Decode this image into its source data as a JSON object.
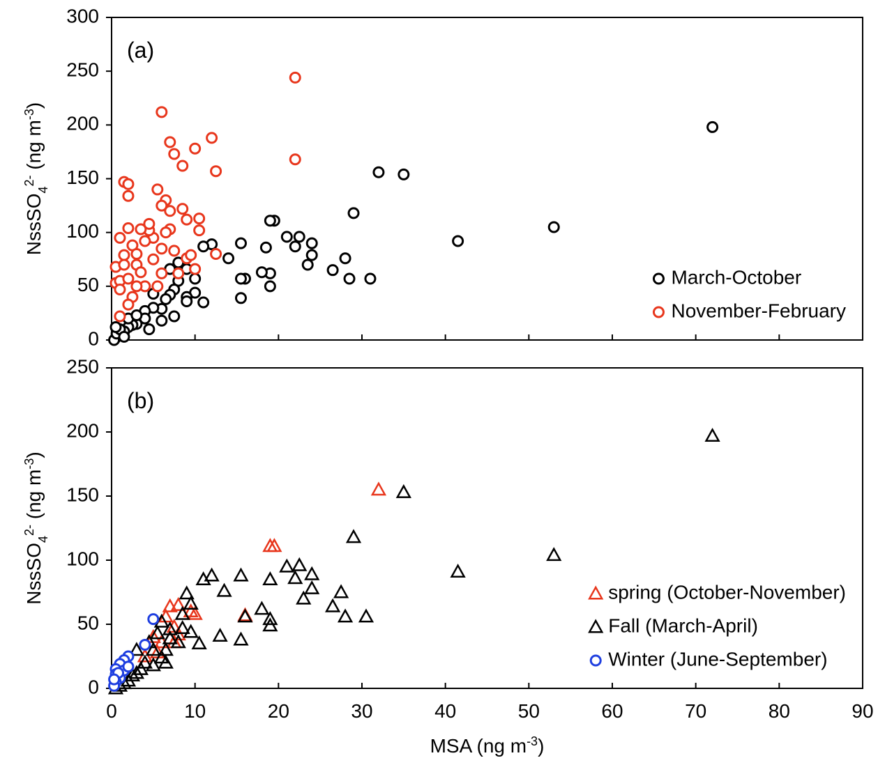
{
  "chart_data": [
    {
      "type": "scatter",
      "annotation": "(a)",
      "ylabel": [
        "NssSO",
        "4",
        "2-",
        " (ng m",
        "-3",
        ")"
      ],
      "xlim": [
        0,
        90
      ],
      "xticks": [
        0,
        10,
        20,
        30,
        40,
        50,
        60,
        70,
        80,
        90
      ],
      "show_xtick_labels": false,
      "ylim": [
        0,
        300
      ],
      "yticks": [
        0,
        50,
        100,
        150,
        200,
        250,
        300
      ],
      "legend": "lower right",
      "series": [
        {
          "name": "March-October",
          "color": "#000000",
          "marker": "circle",
          "x": [
            72,
            53,
            41.5,
            35,
            32,
            31,
            29,
            28.5,
            28,
            26.5,
            24,
            24,
            23.5,
            22.5,
            22,
            21,
            19.5,
            19,
            19,
            19,
            18.5,
            18,
            16,
            15.5,
            15.5,
            15.5,
            14,
            12,
            11,
            11,
            10,
            10,
            9,
            9,
            8,
            7.5,
            7,
            7.5,
            6.5,
            6,
            6,
            5,
            5,
            4,
            4,
            3,
            2.5,
            2,
            1.5,
            1,
            0.5,
            0.3,
            0.6,
            1,
            2,
            3,
            0.5,
            1.5,
            4.5,
            7,
            8,
            9
          ],
          "values": [
            198,
            105,
            92,
            154,
            156,
            57,
            118,
            57,
            76,
            65,
            90,
            79,
            70,
            96,
            87,
            96,
            111,
            111,
            50,
            62,
            86,
            63,
            57,
            57,
            39,
            90,
            76,
            89,
            87,
            35,
            44,
            57,
            66,
            40,
            55,
            47,
            42,
            22,
            38,
            29,
            18,
            43,
            30,
            27,
            20,
            15,
            14,
            12,
            8,
            5,
            2,
            0,
            6,
            10,
            20,
            23,
            12,
            3,
            10,
            66,
            72,
            36
          ]
        },
        {
          "name": "November-February",
          "color": "#e8361c",
          "marker": "circle",
          "x": [
            22,
            22,
            12,
            12.5,
            10,
            6,
            7,
            7.5,
            8.5,
            1.5,
            2,
            2,
            5.5,
            6.5,
            6,
            7,
            8.5,
            9,
            10.5,
            10.5,
            12.5,
            9,
            8,
            10,
            6,
            5,
            4.5,
            3.5,
            2,
            1,
            0.5,
            0.5,
            1,
            1,
            2,
            3,
            3.5,
            4,
            2.5,
            2,
            1,
            1.5,
            2.5,
            3,
            4,
            5,
            6,
            7,
            7.5,
            1.5,
            3,
            4.5,
            6.5,
            9.5,
            5.5
          ],
          "values": [
            244,
            168,
            188,
            157,
            178,
            212,
            184,
            173,
            162,
            147,
            145,
            134,
            140,
            130,
            125,
            120,
            122,
            112,
            113,
            102,
            80,
            76,
            62,
            66,
            85,
            95,
            102,
            103,
            104,
            95,
            68,
            53,
            55,
            47,
            57,
            70,
            63,
            50,
            40,
            33,
            22,
            79,
            88,
            80,
            92,
            75,
            62,
            103,
            83,
            70,
            50,
            108,
            100,
            79,
            50
          ]
        }
      ]
    },
    {
      "type": "scatter",
      "annotation": "(b)",
      "ylabel": [
        "NssSO",
        "4",
        "2-",
        " (ng m",
        "-3",
        ")"
      ],
      "xlabel": [
        "MSA (ng m",
        "-3",
        ")"
      ],
      "xlim": [
        0,
        90
      ],
      "xticks": [
        0,
        10,
        20,
        30,
        40,
        50,
        60,
        70,
        80,
        90
      ],
      "show_xtick_labels": true,
      "ylim": [
        0,
        250
      ],
      "yticks": [
        0,
        50,
        100,
        150,
        200,
        250
      ],
      "legend": "lower right",
      "series": [
        {
          "name": "spring (October-November)",
          "color": "#e8361c",
          "marker": "triangle",
          "x": [
            32,
            19,
            19.5,
            16,
            10,
            9.5,
            7,
            8,
            6.5,
            7.5,
            8,
            6,
            5,
            5.5,
            4,
            7.5
          ],
          "values": [
            155,
            111,
            111,
            57,
            58,
            60,
            64,
            65,
            56,
            48,
            42,
            36,
            40,
            28,
            25,
            36
          ]
        },
        {
          "name": "Fall (March-April)",
          "color": "#000000",
          "marker": "triangle",
          "x": [
            72,
            53,
            41.5,
            35,
            29,
            28,
            27.5,
            26.5,
            24,
            24,
            23,
            22.5,
            22,
            21,
            19,
            19,
            19,
            18,
            16,
            15.5,
            15.5,
            13.5,
            13,
            12,
            11,
            10.5,
            9.5,
            9.5,
            9,
            8.5,
            8,
            7,
            7,
            6.5,
            6,
            5.5,
            5,
            5,
            4,
            3.5,
            3,
            2.5,
            2,
            1.5,
            1,
            0.5,
            8.5,
            6.5,
            4.5,
            30.5,
            3,
            6
          ],
          "values": [
            197,
            104,
            91,
            153,
            118,
            56,
            75,
            64,
            89,
            78,
            70,
            96,
            86,
            95,
            85,
            54,
            49,
            62,
            56,
            88,
            38,
            76,
            41,
            88,
            85,
            35,
            44,
            66,
            74,
            58,
            36,
            46,
            39,
            30,
            24,
            43,
            30,
            18,
            20,
            15,
            12,
            10,
            6,
            4,
            2,
            0,
            47,
            20,
            36,
            56,
            30,
            52
          ]
        },
        {
          "name": "Winter (June-September)",
          "color": "#1f3fe0",
          "marker": "circle",
          "x": [
            5,
            4,
            2,
            1.5,
            1,
            0.5,
            0.5,
            1,
            0.5,
            0.3,
            1.5,
            2,
            0.8,
            0.3
          ],
          "values": [
            54,
            34,
            25,
            22,
            19,
            15,
            11,
            8,
            5,
            2,
            14,
            17,
            12,
            7
          ]
        }
      ]
    }
  ]
}
